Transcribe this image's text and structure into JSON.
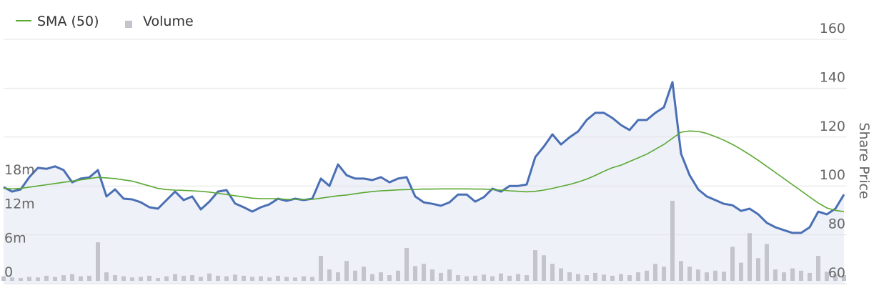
{
  "chart_data": {
    "type": "line",
    "ylabel": "Share Price",
    "ylim": [
      60,
      160
    ],
    "yticks": [
      60,
      80,
      100,
      120,
      140,
      160
    ],
    "y2lim": [
      0,
      18000000
    ],
    "y2ticks": [
      0,
      {
        "value": 6000000,
        "label": "6m"
      },
      {
        "value": 12000000,
        "label": "12m"
      },
      {
        "value": 18000000,
        "label": "18m"
      }
    ],
    "grid": true,
    "legend": "top-left",
    "series": [
      {
        "color": "#4a6fb5",
        "fill": "#eef1f8",
        "values": [
          99.5,
          97.7,
          98.6,
          103.6,
          107.4,
          107,
          108,
          106.5,
          101.5,
          103,
          103.5,
          106.5,
          95.7,
          98.6,
          94.8,
          94.5,
          93.3,
          91.3,
          90.7,
          94.2,
          97.7,
          94.2,
          95.7,
          90.4,
          93.6,
          97.7,
          98.3,
          92.8,
          91.3,
          89.5,
          91.3,
          92.5,
          94.8,
          93.9,
          94.8,
          94.2,
          94.8,
          103,
          100,
          108.8,
          104.4,
          103,
          103,
          102.4,
          103.6,
          101.5,
          103,
          103.6,
          95.7,
          93.3,
          92.7,
          91.9,
          93.3,
          96.5,
          96.5,
          93.6,
          95.4,
          98.9,
          97.7,
          100,
          100,
          100.6,
          111.8,
          116.1,
          121.1,
          117,
          119.9,
          122.3,
          127,
          129.9,
          129.9,
          127.8,
          124.9,
          122.9,
          127,
          127,
          129.9,
          132.2,
          142.5,
          113.2,
          104.4,
          98.6,
          95.7,
          94.2,
          92.7,
          92.1,
          89.8,
          90.7,
          88.4,
          84.9,
          83.1,
          81.9,
          80.8,
          80.8,
          83.1,
          89.5,
          88.4,
          90.7,
          96.5
        ]
      },
      {
        "name": "SMA (50)",
        "color": "#5aa832",
        "values": [
          99,
          98.8,
          99,
          99.5,
          100,
          100.5,
          101,
          101.5,
          102,
          102.5,
          103,
          103.5,
          103.3,
          103,
          102.5,
          102,
          101,
          100,
          99,
          98.5,
          98.3,
          98.2,
          98,
          97.8,
          97.5,
          97,
          96.5,
          96,
          95.5,
          95,
          94.8,
          94.8,
          94.8,
          94.5,
          94.5,
          94.5,
          94.5,
          95,
          95.5,
          96,
          96.3,
          96.8,
          97.3,
          97.7,
          98,
          98.2,
          98.4,
          98.5,
          98.6,
          98.7,
          98.7,
          98.8,
          98.8,
          98.8,
          98.8,
          98.7,
          98.7,
          98.5,
          98.3,
          98,
          97.8,
          97.6,
          97.8,
          98.3,
          99,
          99.8,
          100.6,
          101.6,
          102.8,
          104.3,
          106,
          107.5,
          108.5,
          110,
          111.5,
          113,
          115,
          117,
          119.5,
          122,
          122.5,
          122.3,
          121.5,
          120.2,
          118.7,
          117,
          115,
          112.8,
          110.5,
          108,
          105.5,
          103,
          100.5,
          98,
          95.5,
          93,
          91,
          90,
          89.5
        ]
      },
      {
        "name": "Volume",
        "type": "bar",
        "axis": "y2",
        "color": "#c4c4cc",
        "values": [
          800000,
          600000,
          500000,
          700000,
          600000,
          900000,
          700000,
          1000000,
          1200000,
          800000,
          900000,
          6800000,
          1500000,
          1000000,
          800000,
          600000,
          700000,
          900000,
          500000,
          800000,
          1200000,
          900000,
          1000000,
          700000,
          1300000,
          900000,
          800000,
          1100000,
          900000,
          700000,
          800000,
          600000,
          900000,
          700000,
          600000,
          800000,
          700000,
          4400000,
          2000000,
          1500000,
          3500000,
          1800000,
          2500000,
          1200000,
          1500000,
          1000000,
          1800000,
          5800000,
          2600000,
          3000000,
          2000000,
          1400000,
          2000000,
          1000000,
          800000,
          900000,
          1100000,
          800000,
          1300000,
          900000,
          1200000,
          1000000,
          5400000,
          4500000,
          3000000,
          2200000,
          1500000,
          1200000,
          1000000,
          1400000,
          1100000,
          900000,
          1200000,
          1000000,
          1500000,
          1800000,
          3000000,
          2500000,
          14100000,
          3500000,
          2500000,
          2000000,
          1500000,
          1800000,
          1600000,
          6000000,
          3200000,
          8400000,
          4000000,
          6500000,
          2000000,
          1500000,
          2200000,
          1800000,
          1400000,
          4400000,
          1600000,
          1200000,
          1000000
        ]
      }
    ]
  }
}
